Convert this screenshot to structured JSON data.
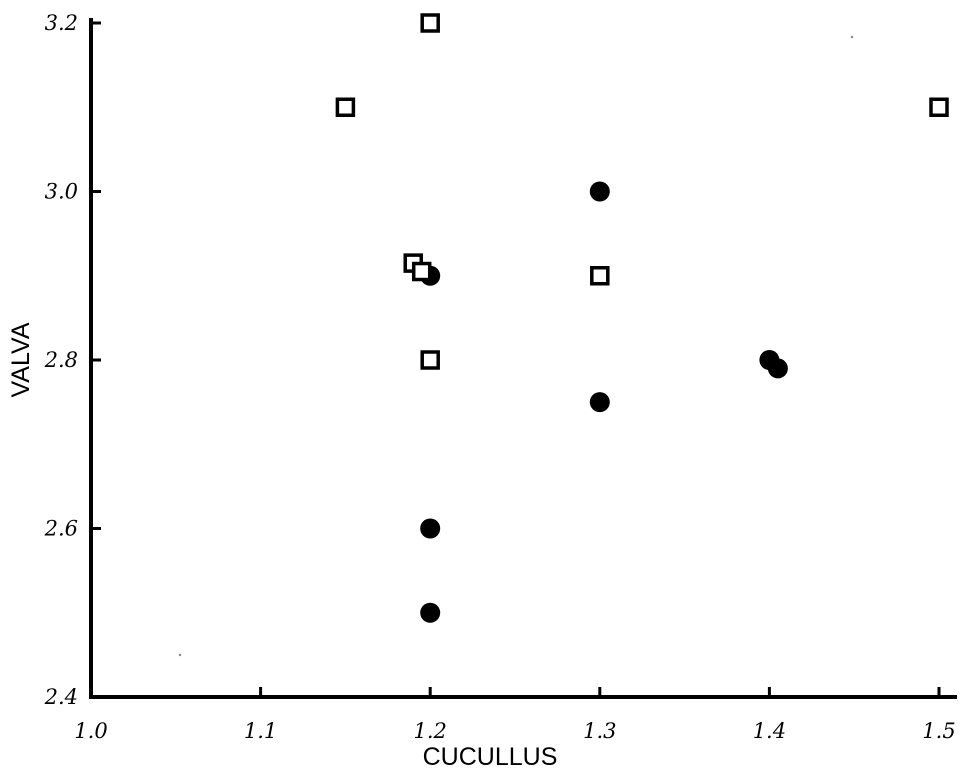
{
  "chart_data": {
    "type": "scatter",
    "title": "",
    "xlabel": "CUCULLUS",
    "ylabel": "VALVA",
    "xlim": [
      1.0,
      1.5
    ],
    "ylim": [
      2.4,
      3.2
    ],
    "x_ticks": [
      "1.0",
      "1.1",
      "1.2",
      "1.3",
      "1.4",
      "1.5"
    ],
    "y_ticks": [
      "2.4",
      "2.6",
      "2.8",
      "3.0",
      "3.2"
    ],
    "grid": false,
    "legend": "none",
    "series": [
      {
        "marker": "filled-circle",
        "color": "#000000",
        "points": [
          {
            "x": 1.2,
            "y": 2.9
          },
          {
            "x": 1.2,
            "y": 2.6
          },
          {
            "x": 1.2,
            "y": 2.5
          },
          {
            "x": 1.3,
            "y": 3.0
          },
          {
            "x": 1.3,
            "y": 2.75
          },
          {
            "x": 1.4,
            "y": 2.8
          },
          {
            "x": 1.405,
            "y": 2.79
          }
        ]
      },
      {
        "marker": "open-square",
        "color": "#000000",
        "points": [
          {
            "x": 1.2,
            "y": 3.2
          },
          {
            "x": 1.15,
            "y": 3.1
          },
          {
            "x": 1.19,
            "y": 2.915
          },
          {
            "x": 1.195,
            "y": 2.905
          },
          {
            "x": 1.2,
            "y": 2.8
          },
          {
            "x": 1.3,
            "y": 2.9
          },
          {
            "x": 1.5,
            "y": 3.1
          }
        ]
      }
    ]
  }
}
